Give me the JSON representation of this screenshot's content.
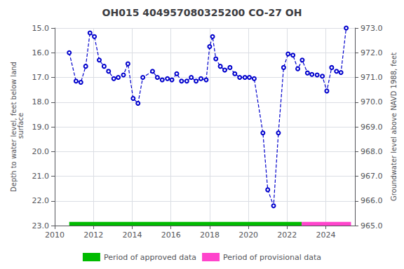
{
  "chart_data": {
    "type": "line",
    "title": "OH015 404957080325200 CO-27 OH",
    "ylabel": "Depth to water level, feet below land\n surface",
    "y2label": "Groundwater level above NAVD 1988, feet",
    "x": [
      2010.75,
      2011.1,
      2011.35,
      2011.6,
      2011.82,
      2012.05,
      2012.3,
      2012.55,
      2012.78,
      2013.05,
      2013.28,
      2013.55,
      2013.78,
      2014.05,
      2014.3,
      2014.55,
      2015.05,
      2015.3,
      2015.55,
      2015.82,
      2016.05,
      2016.3,
      2016.55,
      2016.82,
      2017.05,
      2017.3,
      2017.55,
      2017.82,
      2018.0,
      2018.15,
      2018.32,
      2018.55,
      2018.78,
      2019.05,
      2019.3,
      2019.55,
      2019.82,
      2020.05,
      2020.3,
      2020.75,
      2021.0,
      2021.3,
      2021.55,
      2021.82,
      2022.05,
      2022.3,
      2022.55,
      2022.78,
      2023.05,
      2023.28,
      2023.55,
      2023.82,
      2024.05,
      2024.3,
      2024.55,
      2024.78,
      2025.05
    ],
    "series": [
      {
        "type": "line",
        "color": "#0000CC",
        "line_style": "dashed",
        "marker": "circle",
        "values": [
          16.0,
          17.15,
          17.2,
          16.55,
          15.2,
          15.35,
          16.3,
          16.55,
          16.75,
          17.05,
          17.0,
          16.9,
          16.45,
          17.85,
          18.05,
          17.0,
          16.75,
          17.0,
          17.1,
          17.05,
          17.1,
          16.85,
          17.15,
          17.15,
          17.0,
          17.15,
          17.05,
          17.1,
          15.75,
          15.35,
          16.25,
          16.55,
          16.7,
          16.6,
          16.85,
          17.0,
          17.0,
          17.0,
          17.05,
          19.25,
          21.55,
          22.2,
          19.25,
          16.6,
          16.05,
          16.1,
          16.65,
          16.3,
          16.82,
          16.88,
          16.9,
          16.95,
          17.55,
          16.6,
          16.75,
          16.8,
          15.0
        ]
      }
    ],
    "periods": [
      {
        "name": "Period of approved data",
        "color": "#00BB00",
        "start": 2010.75,
        "end": 2022.75
      },
      {
        "name": "Period of provisional data",
        "color": "#FF44CC",
        "start": 2022.75,
        "end": 2025.3
      }
    ],
    "period_band": [
      22.85,
      23.0
    ],
    "xlim": [
      2010.0,
      2025.5
    ],
    "xticks": [
      2010,
      2012,
      2014,
      2016,
      2018,
      2020,
      2022,
      2024
    ],
    "ylim": [
      23.0,
      15.0
    ],
    "yticks": [
      {
        "value": 15.0,
        "label": "15.0"
      },
      {
        "value": 16.0,
        "label": "16.0"
      },
      {
        "value": 17.0,
        "label": "17.0"
      },
      {
        "value": 18.0,
        "label": "18.0"
      },
      {
        "value": 19.0,
        "label": "19.0"
      },
      {
        "value": 20.0,
        "label": "20.0"
      },
      {
        "value": 21.0,
        "label": "21.0"
      },
      {
        "value": 22.0,
        "label": "22.0"
      },
      {
        "value": 23.0,
        "label": "23.0"
      }
    ],
    "y2lim": [
      965.0,
      973.0
    ],
    "y2ticks": [
      {
        "value": 965.0,
        "label": "965.0"
      },
      {
        "value": 966.0,
        "label": "966.0"
      },
      {
        "value": 967.0,
        "label": "967.0"
      },
      {
        "value": 968.0,
        "label": "968.0"
      },
      {
        "value": 969.0,
        "label": "969.0"
      },
      {
        "value": 970.0,
        "label": "970.0"
      },
      {
        "value": 971.0,
        "label": "971.0"
      },
      {
        "value": 972.0,
        "label": "972.0"
      },
      {
        "value": 973.0,
        "label": "973.0"
      }
    ],
    "grid": true,
    "legend": "bottom"
  }
}
